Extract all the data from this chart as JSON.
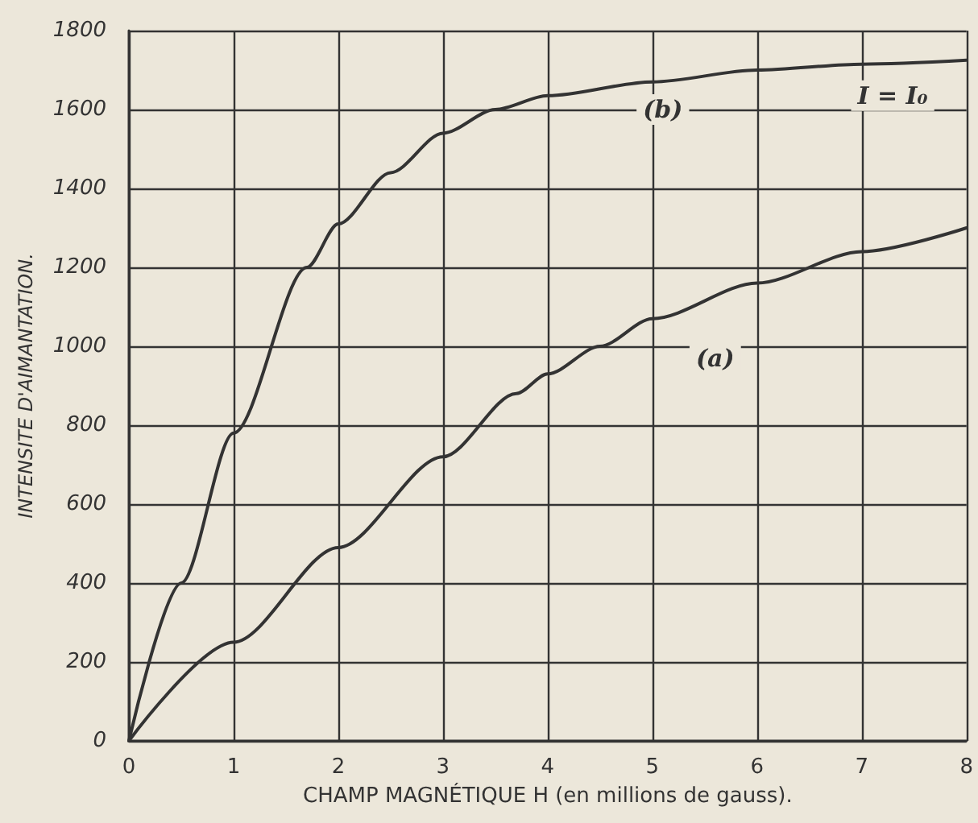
{
  "chart_data": {
    "type": "line",
    "xlabel": "CHAMP MAGNÉTIQUE H (en millions de gauss).",
    "ylabel": "INTENSITE D'AIMANTATION.",
    "xlim": [
      0,
      8
    ],
    "xticks": [
      0,
      1,
      2,
      3,
      4,
      5,
      6,
      7,
      8
    ],
    "ylim": [
      0,
      1800
    ],
    "yticks": [
      0,
      200,
      400,
      600,
      800,
      1000,
      1200,
      1400,
      1600,
      1800
    ],
    "grid": true,
    "marker": "none",
    "line_style": "solid",
    "series": [
      {
        "color": "#333333",
        "x": [
          0,
          0.5,
          1,
          1.7,
          2,
          2.5,
          3,
          3.5,
          4,
          5,
          6,
          7,
          8
        ],
        "values": [
          0,
          400,
          780,
          1200,
          1310,
          1440,
          1540,
          1600,
          1635,
          1670,
          1700,
          1715,
          1725
        ]
      },
      {
        "color": "#333333",
        "x": [
          0,
          1,
          2,
          3,
          3.7,
          4,
          4.5,
          5,
          6,
          7,
          8
        ],
        "values": [
          0,
          250,
          490,
          720,
          880,
          930,
          1000,
          1070,
          1160,
          1240,
          1300
        ]
      }
    ],
    "annotations": [
      {
        "text": "(b)",
        "x": 5.1,
        "y": 1600
      },
      {
        "text": "(a)",
        "x": 5.6,
        "y": 970
      },
      {
        "text": "I = I₀",
        "x": 8,
        "y": 1725
      }
    ]
  }
}
